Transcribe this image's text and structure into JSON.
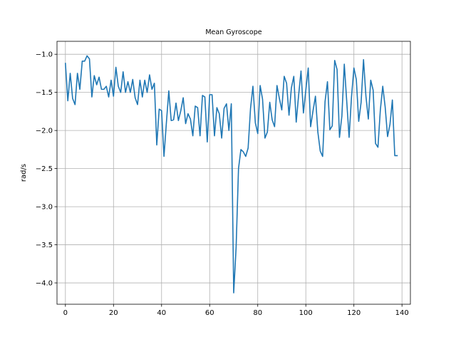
{
  "chart_data": {
    "type": "line",
    "title": "Mean Gyroscope",
    "xlabel": "",
    "ylabel": "rad/s",
    "xlim": [
      -3.5,
      143.5
    ],
    "ylim": [
      -4.28,
      -0.83
    ],
    "xticks": [
      0,
      20,
      40,
      60,
      80,
      100,
      120,
      140
    ],
    "yticks": [
      -1.0,
      -1.5,
      -2.0,
      -2.5,
      -3.0,
      -3.5,
      -4.0
    ],
    "grid": true,
    "line_color": "#1f77b4",
    "series": [
      {
        "values": [
          -1.12,
          -1.61,
          -1.25,
          -1.58,
          -1.66,
          -1.25,
          -1.46,
          -1.09,
          -1.09,
          -1.02,
          -1.06,
          -1.56,
          -1.28,
          -1.4,
          -1.3,
          -1.46,
          -1.46,
          -1.42,
          -1.56,
          -1.34,
          -1.55,
          -1.17,
          -1.42,
          -1.5,
          -1.23,
          -1.5,
          -1.36,
          -1.5,
          -1.33,
          -1.57,
          -1.66,
          -1.34,
          -1.56,
          -1.34,
          -1.5,
          -1.27,
          -1.46,
          -1.38,
          -2.19,
          -1.72,
          -1.74,
          -2.34,
          -1.9,
          -1.48,
          -1.87,
          -1.86,
          -1.64,
          -1.87,
          -1.74,
          -1.57,
          -1.91,
          -1.78,
          -1.85,
          -2.07,
          -1.68,
          -1.7,
          -2.07,
          -1.54,
          -1.56,
          -2.15,
          -1.53,
          -1.53,
          -2.07,
          -1.7,
          -1.78,
          -2.1,
          -1.71,
          -1.65,
          -2.0,
          -1.65,
          -4.13,
          -3.54,
          -2.5,
          -2.25,
          -2.28,
          -2.34,
          -2.23,
          -1.71,
          -1.42,
          -1.9,
          -2.04,
          -1.41,
          -1.59,
          -2.1,
          -2.02,
          -1.63,
          -1.86,
          -1.95,
          -1.41,
          -1.58,
          -1.73,
          -1.29,
          -1.38,
          -1.8,
          -1.44,
          -1.29,
          -1.89,
          -1.54,
          -1.22,
          -1.77,
          -1.47,
          -1.18,
          -1.95,
          -1.74,
          -1.55,
          -2.02,
          -2.27,
          -2.34,
          -1.62,
          -1.36,
          -1.99,
          -1.94,
          -1.08,
          -1.2,
          -2.09,
          -1.81,
          -1.13,
          -1.61,
          -2.09,
          -1.56,
          -1.18,
          -1.33,
          -1.88,
          -1.63,
          -1.07,
          -1.55,
          -1.85,
          -1.34,
          -1.47,
          -2.17,
          -2.22,
          -1.73,
          -1.42,
          -1.69,
          -2.08,
          -1.92,
          -1.6,
          -2.33,
          -2.33
        ]
      }
    ]
  }
}
